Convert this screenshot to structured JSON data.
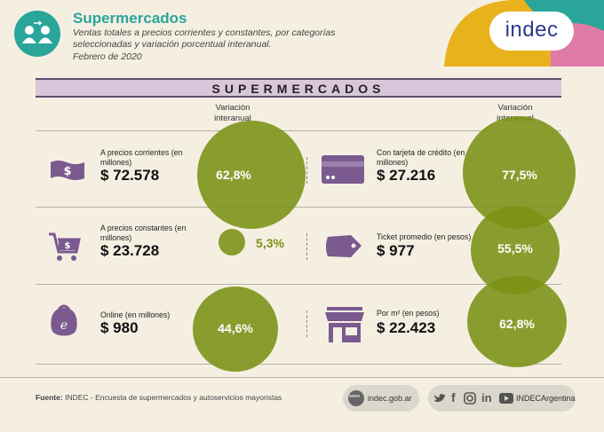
{
  "header": {
    "title": "Supermercados",
    "subtitle": "Ventas totales a precios corrientes y constantes, por categorías seleccionadas y variación porcentual interanual.",
    "date": "Febrero de 2020",
    "logo": "indec"
  },
  "banner": "SUPERMERCADOS",
  "variation_heading": "Variación interanual",
  "left": [
    {
      "label": "A precios corrientes (en millones)",
      "value": "$ 72.578",
      "variation": "62,8%",
      "icon": "banknote-icon"
    },
    {
      "label": "A precios constantes (en millones)",
      "value": "$ 23.728",
      "variation": "5,3%",
      "icon": "shopping-cart-icon"
    },
    {
      "label": "Online (en millones)",
      "value": "$ 980",
      "variation": "44,6%",
      "icon": "online-bag-icon"
    }
  ],
  "right": [
    {
      "label": "Con tarjeta de crédito (en millones)",
      "value": "$ 27.216",
      "variation": "77,5%",
      "icon": "credit-card-icon"
    },
    {
      "label": "Ticket promedio (en pesos)",
      "value": "$ 977",
      "variation": "55,5%",
      "icon": "price-tag-icon"
    },
    {
      "label": "Por m² (en pesos)",
      "value": "$ 22.423",
      "variation": "62,8%",
      "icon": "storefront-icon"
    }
  ],
  "footer": {
    "source_label": "Fuente:",
    "source_text": "INDEC - Encuesta de supermercados y autoservicios mayoristas",
    "web": "indec.gob.ar",
    "web_badge": "www",
    "social_handle": "INDECArgentina"
  },
  "colors": {
    "accent_teal": "#2aa59a",
    "circle_green": "#7a9215",
    "icon_purple": "#7a5a8f",
    "banner_bg": "#d9c6da"
  }
}
